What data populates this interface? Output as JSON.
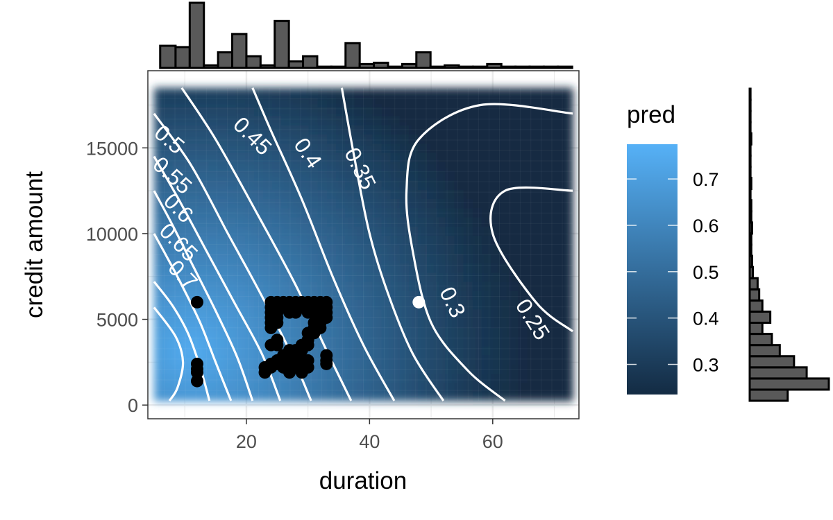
{
  "chart_data": {
    "type": "heatmap",
    "title": "",
    "xlabel": "duration",
    "ylabel": "credit amount",
    "xlim": [
      4,
      74
    ],
    "ylim": [
      -800,
      19500
    ],
    "grid": true,
    "x_ticks": [
      "20",
      "40",
      "60"
    ],
    "x_tick_values": [
      20,
      40,
      60
    ],
    "y_ticks": [
      "0",
      "5000",
      "10000",
      "15000"
    ],
    "y_tick_values": [
      0,
      5000,
      10000,
      15000
    ],
    "surface": {
      "x_range": [
        5,
        73
      ],
      "y_range": [
        250,
        18500
      ],
      "colors": {
        "low": "#132B43",
        "high": "#56B1F7"
      }
    },
    "contours": [
      {
        "label": "0.25",
        "points": [
          [
            73,
            4300
          ],
          [
            67,
            6000
          ],
          [
            60,
            10000
          ],
          [
            62,
            12500
          ],
          [
            73,
            12500
          ]
        ]
      },
      {
        "label": "0.3",
        "points": [
          [
            62,
            250
          ],
          [
            56,
            2000
          ],
          [
            50,
            4800
          ],
          [
            47,
            9000
          ],
          [
            46,
            12500
          ],
          [
            48,
            15500
          ],
          [
            58,
            17500
          ],
          [
            73,
            17000
          ]
        ]
      },
      {
        "label": "0.35",
        "points": [
          [
            52,
            250
          ],
          [
            47,
            3000
          ],
          [
            43,
            6500
          ],
          [
            40,
            10000
          ],
          [
            37.5,
            14500
          ],
          [
            35.5,
            18500
          ]
        ]
      },
      {
        "label": "0.4",
        "points": [
          [
            44,
            250
          ],
          [
            39,
            3500
          ],
          [
            34,
            7500
          ],
          [
            29,
            12000
          ],
          [
            24,
            16000
          ],
          [
            21,
            18500
          ]
        ]
      },
      {
        "label": "0.45",
        "points": [
          [
            37,
            250
          ],
          [
            33,
            3200
          ],
          [
            28,
            7000
          ],
          [
            22,
            11000
          ],
          [
            15,
            15500
          ],
          [
            9.5,
            18500
          ]
        ]
      },
      {
        "label": "0.5",
        "points": [
          [
            30.5,
            250
          ],
          [
            27,
            3200
          ],
          [
            22,
            6700
          ],
          [
            17,
            10000
          ],
          [
            11,
            14000
          ],
          [
            5,
            17000
          ]
        ]
      },
      {
        "label": "0.55",
        "points": [
          [
            25.5,
            250
          ],
          [
            22.5,
            3000
          ],
          [
            18,
            6000
          ],
          [
            13.5,
            9000
          ],
          [
            9,
            12000
          ],
          [
            5,
            14500
          ]
        ]
      },
      {
        "label": "0.6",
        "points": [
          [
            21,
            250
          ],
          [
            18.5,
            2800
          ],
          [
            15,
            5500
          ],
          [
            11.5,
            8000
          ],
          [
            8,
            10500
          ],
          [
            5,
            12500
          ]
        ]
      },
      {
        "label": "0.65",
        "points": [
          [
            17.5,
            250
          ],
          [
            15,
            2500
          ],
          [
            12.5,
            4800
          ],
          [
            9.5,
            7000
          ],
          [
            7,
            8700
          ],
          [
            5,
            10000
          ]
        ]
      },
      {
        "label": "0.7",
        "points": [
          [
            14,
            250
          ],
          [
            12.5,
            2200
          ],
          [
            10.5,
            4200
          ],
          [
            8,
            5800
          ],
          [
            5,
            7200
          ]
        ]
      },
      {
        "label": "",
        "points": [
          [
            5,
            5700
          ],
          [
            8.5,
            4000
          ],
          [
            9.7,
            2500
          ],
          [
            8.8,
            1000
          ],
          [
            7.5,
            250
          ]
        ]
      }
    ],
    "contour_labels": [
      {
        "label": "0.25",
        "x": 66.5,
        "y": 5000
      },
      {
        "label": "0.3",
        "x": 53.5,
        "y": 6000
      },
      {
        "label": "0.35",
        "x": 38.5,
        "y": 13800
      },
      {
        "label": "0.4",
        "x": 30,
        "y": 14700
      },
      {
        "label": "0.45",
        "x": 21,
        "y": 15700
      },
      {
        "label": "0.5",
        "x": 7.5,
        "y": 15500
      },
      {
        "label": "0.55",
        "x": 8,
        "y": 13400
      },
      {
        "label": "0.6",
        "x": 9,
        "y": 11500
      },
      {
        "label": "0.65",
        "x": 9,
        "y": 9500
      },
      {
        "label": "0.7",
        "x": 9.7,
        "y": 7600
      }
    ],
    "points_black": [
      [
        12,
        6000
      ],
      [
        12,
        2400
      ],
      [
        12,
        2100
      ],
      [
        12,
        1900
      ],
      [
        12,
        1400
      ],
      [
        24,
        6000
      ],
      [
        25,
        6000
      ],
      [
        26,
        6000
      ],
      [
        27,
        6000
      ],
      [
        28,
        6000
      ],
      [
        29,
        6000
      ],
      [
        30,
        6000
      ],
      [
        31,
        6000
      ],
      [
        32,
        6000
      ],
      [
        33,
        6000
      ],
      [
        24,
        5700
      ],
      [
        25,
        5700
      ],
      [
        26,
        5700
      ],
      [
        27,
        5700
      ],
      [
        28,
        5700
      ],
      [
        29,
        5700
      ],
      [
        30,
        5700
      ],
      [
        31,
        5700
      ],
      [
        32,
        5700
      ],
      [
        33,
        5700
      ],
      [
        24,
        5400
      ],
      [
        25,
        5400
      ],
      [
        27,
        5400
      ],
      [
        28,
        5400
      ],
      [
        30,
        5400
      ],
      [
        31,
        5400
      ],
      [
        32,
        5400
      ],
      [
        33,
        5400
      ],
      [
        24,
        5100
      ],
      [
        25,
        5100
      ],
      [
        32,
        5100
      ],
      [
        33,
        5100
      ],
      [
        24,
        4800
      ],
      [
        25,
        4800
      ],
      [
        31,
        4800
      ],
      [
        32,
        4800
      ],
      [
        24,
        4500
      ],
      [
        31,
        4500
      ],
      [
        32,
        4500
      ],
      [
        30,
        4200
      ],
      [
        31,
        4200
      ],
      [
        25,
        3800
      ],
      [
        30,
        3800
      ],
      [
        24,
        3500
      ],
      [
        25,
        3500
      ],
      [
        29,
        3500
      ],
      [
        30,
        3500
      ],
      [
        27,
        3200
      ],
      [
        28,
        3200
      ],
      [
        29,
        3200
      ],
      [
        26,
        2900
      ],
      [
        27,
        2900
      ],
      [
        28,
        2900
      ],
      [
        33,
        2900
      ],
      [
        25,
        2600
      ],
      [
        26,
        2600
      ],
      [
        27,
        2600
      ],
      [
        28,
        2600
      ],
      [
        29,
        2600
      ],
      [
        30,
        2600
      ],
      [
        33,
        2600
      ],
      [
        24,
        2400
      ],
      [
        25,
        2400
      ],
      [
        27,
        2400
      ],
      [
        28,
        2400
      ],
      [
        29,
        2400
      ],
      [
        33,
        2400
      ],
      [
        23,
        2200
      ],
      [
        24,
        2200
      ],
      [
        26,
        2200
      ],
      [
        28,
        2200
      ],
      [
        30,
        2200
      ],
      [
        23,
        1900
      ],
      [
        27,
        1900
      ],
      [
        29,
        1900
      ]
    ],
    "points_white": [
      [
        48,
        6000
      ]
    ],
    "top_histogram": {
      "x_bins": [
        [
          6,
          8.5
        ],
        [
          8.5,
          10.8
        ],
        [
          10.8,
          13.1
        ],
        [
          13.1,
          15.4
        ],
        [
          15.4,
          17.7
        ],
        [
          17.7,
          20.0
        ],
        [
          20.0,
          22.3
        ],
        [
          22.3,
          24.6
        ],
        [
          24.6,
          26.9
        ],
        [
          26.9,
          29.2
        ],
        [
          29.2,
          31.5
        ],
        [
          31.5,
          33.8
        ],
        [
          33.8,
          36.1
        ],
        [
          36.1,
          38.4
        ],
        [
          38.4,
          40.7
        ],
        [
          40.7,
          43.0
        ],
        [
          43.0,
          45.3
        ],
        [
          45.3,
          47.6
        ],
        [
          47.6,
          49.9
        ],
        [
          49.9,
          52.2
        ],
        [
          52.2,
          54.5
        ],
        [
          54.5,
          56.8
        ],
        [
          56.8,
          59.1
        ],
        [
          59.1,
          61.4
        ],
        [
          61.4,
          63.7
        ],
        [
          63.7,
          66.0
        ],
        [
          66.0,
          68.3
        ],
        [
          68.3,
          70.6
        ],
        [
          70.6,
          72.9
        ]
      ],
      "counts": [
        17,
        16,
        50,
        2,
        12,
        26,
        9,
        2,
        36,
        5,
        9,
        1,
        1,
        19,
        3,
        4,
        1,
        3,
        12,
        1,
        2,
        1,
        1,
        3,
        1,
        1,
        1,
        1,
        1
      ]
    },
    "right_histogram": {
      "y_bins": [
        [
          250,
          900
        ],
        [
          900,
          1550
        ],
        [
          1550,
          2200
        ],
        [
          2200,
          2850
        ],
        [
          2850,
          3500
        ],
        [
          3500,
          4150
        ],
        [
          4150,
          4800
        ],
        [
          4800,
          5450
        ],
        [
          5450,
          6100
        ],
        [
          6100,
          6750
        ],
        [
          6750,
          7400
        ],
        [
          7400,
          8050
        ],
        [
          8050,
          8700
        ],
        [
          8700,
          9350
        ],
        [
          9350,
          10000
        ],
        [
          10000,
          10650
        ],
        [
          10650,
          11300
        ],
        [
          11300,
          11950
        ],
        [
          11950,
          12600
        ],
        [
          12600,
          13250
        ],
        [
          13250,
          13900
        ],
        [
          13900,
          14550
        ],
        [
          14550,
          15200
        ],
        [
          15200,
          15850
        ],
        [
          15850,
          16500
        ],
        [
          16500,
          17150
        ],
        [
          17150,
          17800
        ],
        [
          17800,
          18450
        ]
      ],
      "counts": [
        48,
        100,
        72,
        56,
        38,
        28,
        16,
        26,
        16,
        12,
        10,
        4,
        3,
        2,
        2,
        3,
        2,
        2,
        1,
        2,
        1,
        1,
        1,
        2,
        1,
        1,
        1,
        1
      ]
    }
  },
  "legend": {
    "title": "pred",
    "labels": [
      "0.7",
      "0.6",
      "0.5",
      "0.4",
      "0.3"
    ],
    "values": [
      0.7,
      0.6,
      0.5,
      0.4,
      0.3
    ],
    "range": [
      0.235,
      0.775
    ]
  }
}
